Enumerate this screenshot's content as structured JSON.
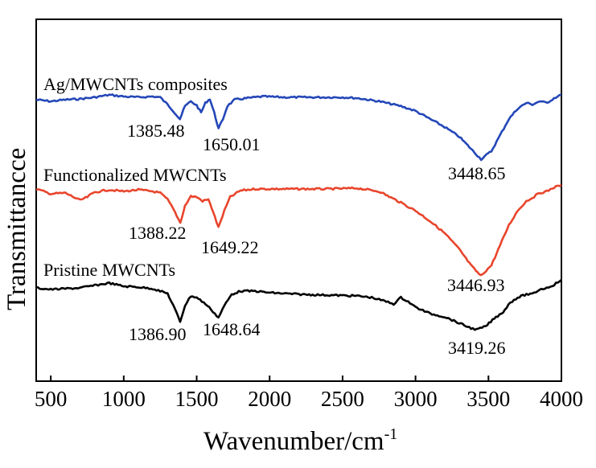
{
  "chart_data": {
    "type": "line",
    "xlabel": "Wavenumber/cm",
    "xlabel_superscript": "-1",
    "ylabel": "Transmittancce",
    "xlim": [
      400,
      4000
    ],
    "xticks": [
      "500",
      "1000",
      "1500",
      "2000",
      "2500",
      "3000",
      "3500",
      "4000"
    ],
    "yticks_shown": false,
    "grid": false,
    "legend": "none",
    "series": [
      {
        "name": "Ag/MWCNTs composites",
        "color": "#2447b8",
        "baseline": 121,
        "points": [
          [
            400,
            124
          ],
          [
            500,
            126
          ],
          [
            600,
            124
          ],
          [
            700,
            123
          ],
          [
            800,
            121
          ],
          [
            900,
            118
          ],
          [
            1000,
            120
          ],
          [
            1100,
            121
          ],
          [
            1200,
            120
          ],
          [
            1250,
            121
          ],
          [
            1300,
            130
          ],
          [
            1340,
            138
          ],
          [
            1385,
            148
          ],
          [
            1420,
            132
          ],
          [
            1460,
            126
          ],
          [
            1500,
            131
          ],
          [
            1530,
            140
          ],
          [
            1560,
            128
          ],
          [
            1590,
            123
          ],
          [
            1620,
            140
          ],
          [
            1650,
            160
          ],
          [
            1680,
            148
          ],
          [
            1710,
            132
          ],
          [
            1760,
            124
          ],
          [
            1850,
            122
          ],
          [
            1950,
            120
          ],
          [
            2100,
            121
          ],
          [
            2300,
            121
          ],
          [
            2500,
            121
          ],
          [
            2600,
            122
          ],
          [
            2750,
            126
          ],
          [
            2900,
            132
          ],
          [
            3000,
            138
          ],
          [
            3100,
            148
          ],
          [
            3200,
            158
          ],
          [
            3300,
            170
          ],
          [
            3380,
            185
          ],
          [
            3449,
            198
          ],
          [
            3520,
            188
          ],
          [
            3580,
            168
          ],
          [
            3640,
            148
          ],
          [
            3700,
            135
          ],
          [
            3760,
            128
          ],
          [
            3800,
            130
          ],
          [
            3850,
            126
          ],
          [
            3900,
            128
          ],
          [
            3950,
            122
          ],
          [
            4000,
            118
          ]
        ],
        "peaks": [
          {
            "label": "1385.48"
          },
          {
            "label": "1650.01"
          },
          {
            "label": "3448.65"
          }
        ]
      },
      {
        "name": "Functionalized MWCNTs",
        "color": "#e8452c",
        "baseline": 235,
        "points": [
          [
            400,
            235
          ],
          [
            500,
            241
          ],
          [
            600,
            240
          ],
          [
            700,
            249
          ],
          [
            750,
            245
          ],
          [
            800,
            239
          ],
          [
            900,
            236
          ],
          [
            1000,
            238
          ],
          [
            1100,
            236
          ],
          [
            1200,
            238
          ],
          [
            1250,
            240
          ],
          [
            1300,
            248
          ],
          [
            1340,
            260
          ],
          [
            1388,
            277
          ],
          [
            1420,
            256
          ],
          [
            1460,
            244
          ],
          [
            1500,
            245
          ],
          [
            1540,
            250
          ],
          [
            1580,
            248
          ],
          [
            1610,
            262
          ],
          [
            1649,
            283
          ],
          [
            1690,
            262
          ],
          [
            1730,
            245
          ],
          [
            1800,
            237
          ],
          [
            1900,
            235
          ],
          [
            2000,
            235
          ],
          [
            2200,
            235
          ],
          [
            2400,
            235
          ],
          [
            2600,
            234
          ],
          [
            2750,
            238
          ],
          [
            2900,
            252
          ],
          [
            3000,
            262
          ],
          [
            3100,
            275
          ],
          [
            3200,
            290
          ],
          [
            3300,
            310
          ],
          [
            3380,
            330
          ],
          [
            3447,
            343
          ],
          [
            3520,
            330
          ],
          [
            3580,
            305
          ],
          [
            3640,
            280
          ],
          [
            3700,
            262
          ],
          [
            3760,
            250
          ],
          [
            3800,
            246
          ],
          [
            3850,
            240
          ],
          [
            3900,
            238
          ],
          [
            3950,
            233
          ],
          [
            4000,
            230
          ]
        ],
        "peaks": [
          {
            "label": "1388.22"
          },
          {
            "label": "1649.22"
          },
          {
            "label": "3446.93"
          }
        ]
      },
      {
        "name": "Pristine MWCNTs",
        "color": "#000000",
        "baseline": 357,
        "points": [
          [
            400,
            358
          ],
          [
            500,
            360
          ],
          [
            600,
            359
          ],
          [
            700,
            358
          ],
          [
            800,
            355
          ],
          [
            900,
            352
          ],
          [
            1000,
            356
          ],
          [
            1100,
            357
          ],
          [
            1200,
            359
          ],
          [
            1300,
            365
          ],
          [
            1340,
            380
          ],
          [
            1387,
            400
          ],
          [
            1420,
            380
          ],
          [
            1460,
            368
          ],
          [
            1500,
            370
          ],
          [
            1560,
            378
          ],
          [
            1600,
            385
          ],
          [
            1649,
            395
          ],
          [
            1690,
            380
          ],
          [
            1740,
            366
          ],
          [
            1800,
            362
          ],
          [
            1900,
            362
          ],
          [
            2000,
            364
          ],
          [
            2200,
            366
          ],
          [
            2400,
            367
          ],
          [
            2600,
            368
          ],
          [
            2700,
            370
          ],
          [
            2800,
            375
          ],
          [
            2850,
            378
          ],
          [
            2900,
            370
          ],
          [
            2950,
            375
          ],
          [
            3000,
            382
          ],
          [
            3100,
            390
          ],
          [
            3200,
            394
          ],
          [
            3300,
            402
          ],
          [
            3380,
            408
          ],
          [
            3419,
            410
          ],
          [
            3480,
            406
          ],
          [
            3540,
            396
          ],
          [
            3600,
            388
          ],
          [
            3650,
            376
          ],
          [
            3700,
            370
          ],
          [
            3760,
            366
          ],
          [
            3800,
            366
          ],
          [
            3850,
            360
          ],
          [
            3900,
            358
          ],
          [
            3950,
            354
          ],
          [
            4000,
            348
          ]
        ],
        "peaks": [
          {
            "label": "1386.90"
          },
          {
            "label": "1648.64"
          },
          {
            "label": "3419.26"
          }
        ]
      }
    ]
  }
}
